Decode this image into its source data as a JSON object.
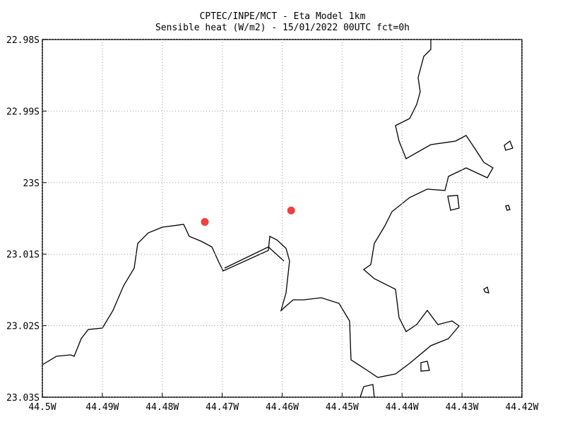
{
  "chart_data": {
    "type": "scatter",
    "title": "CPTEC/INPE/MCT -  Eta Model 1km",
    "subtitle": "Sensible heat (W/m2) - 15/01/2022 00UTC fct=0h",
    "x": [
      -44.4729,
      -44.4585
    ],
    "values": [
      -23.0055,
      -23.0039
    ],
    "color": "#f04040",
    "xlim": [
      -44.5,
      -44.42
    ],
    "ylim": [
      -23.03,
      -22.98
    ],
    "xticks": [
      {
        "value": -44.5,
        "label": "44.5W"
      },
      {
        "value": -44.49,
        "label": "44.49W"
      },
      {
        "value": -44.48,
        "label": "44.48W"
      },
      {
        "value": -44.47,
        "label": "44.47W"
      },
      {
        "value": -44.46,
        "label": "44.46W"
      },
      {
        "value": -44.45,
        "label": "44.45W"
      },
      {
        "value": -44.44,
        "label": "44.44W"
      },
      {
        "value": -44.43,
        "label": "44.43W"
      },
      {
        "value": -44.42,
        "label": "44.42W"
      }
    ],
    "yticks": [
      {
        "value": -22.98,
        "label": "22.98S"
      },
      {
        "value": -22.99,
        "label": "22.99S"
      },
      {
        "value": -23.0,
        "label": "23S"
      },
      {
        "value": -23.01,
        "label": "23.01S"
      },
      {
        "value": -23.02,
        "label": "23.02S"
      },
      {
        "value": -23.03,
        "label": "23.03S"
      }
    ],
    "grid": true
  }
}
